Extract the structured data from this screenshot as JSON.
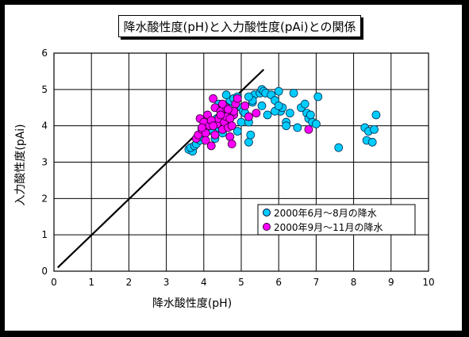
{
  "chart_data": {
    "type": "scatter",
    "title": "降水酸性度(pH)と入力酸性度(pAi)との関係",
    "xlabel": "降水酸性度(pH)",
    "ylabel": "入力酸性度(pAi)",
    "xlim": [
      0,
      10
    ],
    "ylim": [
      0,
      6
    ],
    "xticks": [
      "0",
      "1",
      "2",
      "3",
      "4",
      "5",
      "6",
      "7",
      "8",
      "9",
      "10"
    ],
    "yticks": [
      "0",
      "1",
      "2",
      "3",
      "4",
      "5",
      "6"
    ],
    "grid": true,
    "legend_position": "bottom-right",
    "reference_line": {
      "x": [
        0.1,
        5.6
      ],
      "y": [
        0.1,
        5.55
      ]
    },
    "series": [
      {
        "name": "2000年6月～8月の降水",
        "color": "#00ccff",
        "x": [
          3.6,
          3.7,
          3.65,
          3.75,
          3.8,
          3.9,
          3.95,
          4.0,
          4.1,
          4.2,
          4.25,
          4.3,
          4.35,
          4.4,
          4.45,
          4.5,
          4.55,
          4.6,
          4.65,
          4.7,
          4.8,
          4.9,
          5.0,
          5.05,
          5.1,
          5.2,
          5.25,
          5.3,
          5.35,
          5.5,
          5.55,
          5.6,
          5.65,
          5.7,
          5.8,
          5.9,
          6.0,
          6.05,
          6.1,
          6.2,
          6.3,
          6.5,
          6.6,
          6.7,
          6.75,
          6.8,
          6.9,
          7.0,
          7.05,
          7.6,
          8.3,
          8.35,
          8.4,
          8.5,
          8.55,
          8.6,
          4.3,
          4.5,
          4.7,
          5.0,
          5.3,
          5.55,
          5.9,
          6.4,
          6.85,
          4.9,
          5.2,
          4.4,
          4.6,
          6.0,
          6.2,
          5.2
        ],
        "y": [
          3.35,
          3.3,
          3.4,
          3.45,
          3.5,
          3.6,
          3.7,
          3.8,
          3.85,
          3.9,
          4.05,
          4.1,
          4.2,
          3.95,
          4.3,
          4.45,
          4.5,
          4.55,
          4.6,
          4.7,
          4.75,
          4.8,
          4.5,
          4.4,
          4.35,
          3.55,
          3.75,
          4.65,
          4.85,
          4.9,
          5.0,
          4.95,
          4.9,
          4.3,
          4.85,
          4.7,
          4.95,
          4.4,
          4.5,
          4.1,
          4.35,
          3.95,
          4.5,
          4.6,
          4.35,
          4.2,
          4.1,
          4.05,
          4.8,
          3.4,
          3.95,
          3.6,
          3.85,
          3.55,
          3.9,
          4.3,
          3.65,
          3.8,
          4.2,
          4.1,
          4.7,
          4.55,
          4.4,
          4.9,
          4.3,
          3.85,
          4.8,
          4.6,
          4.85,
          4.55,
          4.0,
          4.1
        ]
      },
      {
        "name": "2000年9月～11月の降水",
        "color": "#ff00ff",
        "x": [
          3.8,
          3.85,
          3.9,
          3.95,
          4.0,
          4.05,
          4.1,
          4.15,
          4.2,
          4.25,
          4.3,
          4.35,
          4.4,
          4.45,
          4.5,
          4.55,
          4.6,
          4.65,
          4.7,
          4.75,
          4.8,
          4.85,
          4.9,
          5.1,
          5.2,
          5.4,
          6.8,
          4.2,
          4.3,
          4.5,
          4.6,
          4.7,
          4.8,
          4.25,
          4.45,
          4.65,
          4.05,
          3.95,
          4.75
        ],
        "y": [
          3.65,
          3.75,
          4.2,
          3.9,
          4.1,
          3.8,
          4.3,
          4.0,
          3.45,
          4.75,
          4.5,
          4.05,
          4.2,
          4.4,
          3.9,
          4.1,
          4.5,
          3.95,
          3.7,
          3.5,
          4.3,
          4.6,
          4.75,
          4.55,
          4.25,
          4.35,
          3.9,
          4.15,
          3.75,
          4.6,
          4.25,
          4.2,
          4.4,
          4.0,
          4.3,
          4.45,
          3.6,
          3.95,
          4.0
        ]
      }
    ]
  }
}
